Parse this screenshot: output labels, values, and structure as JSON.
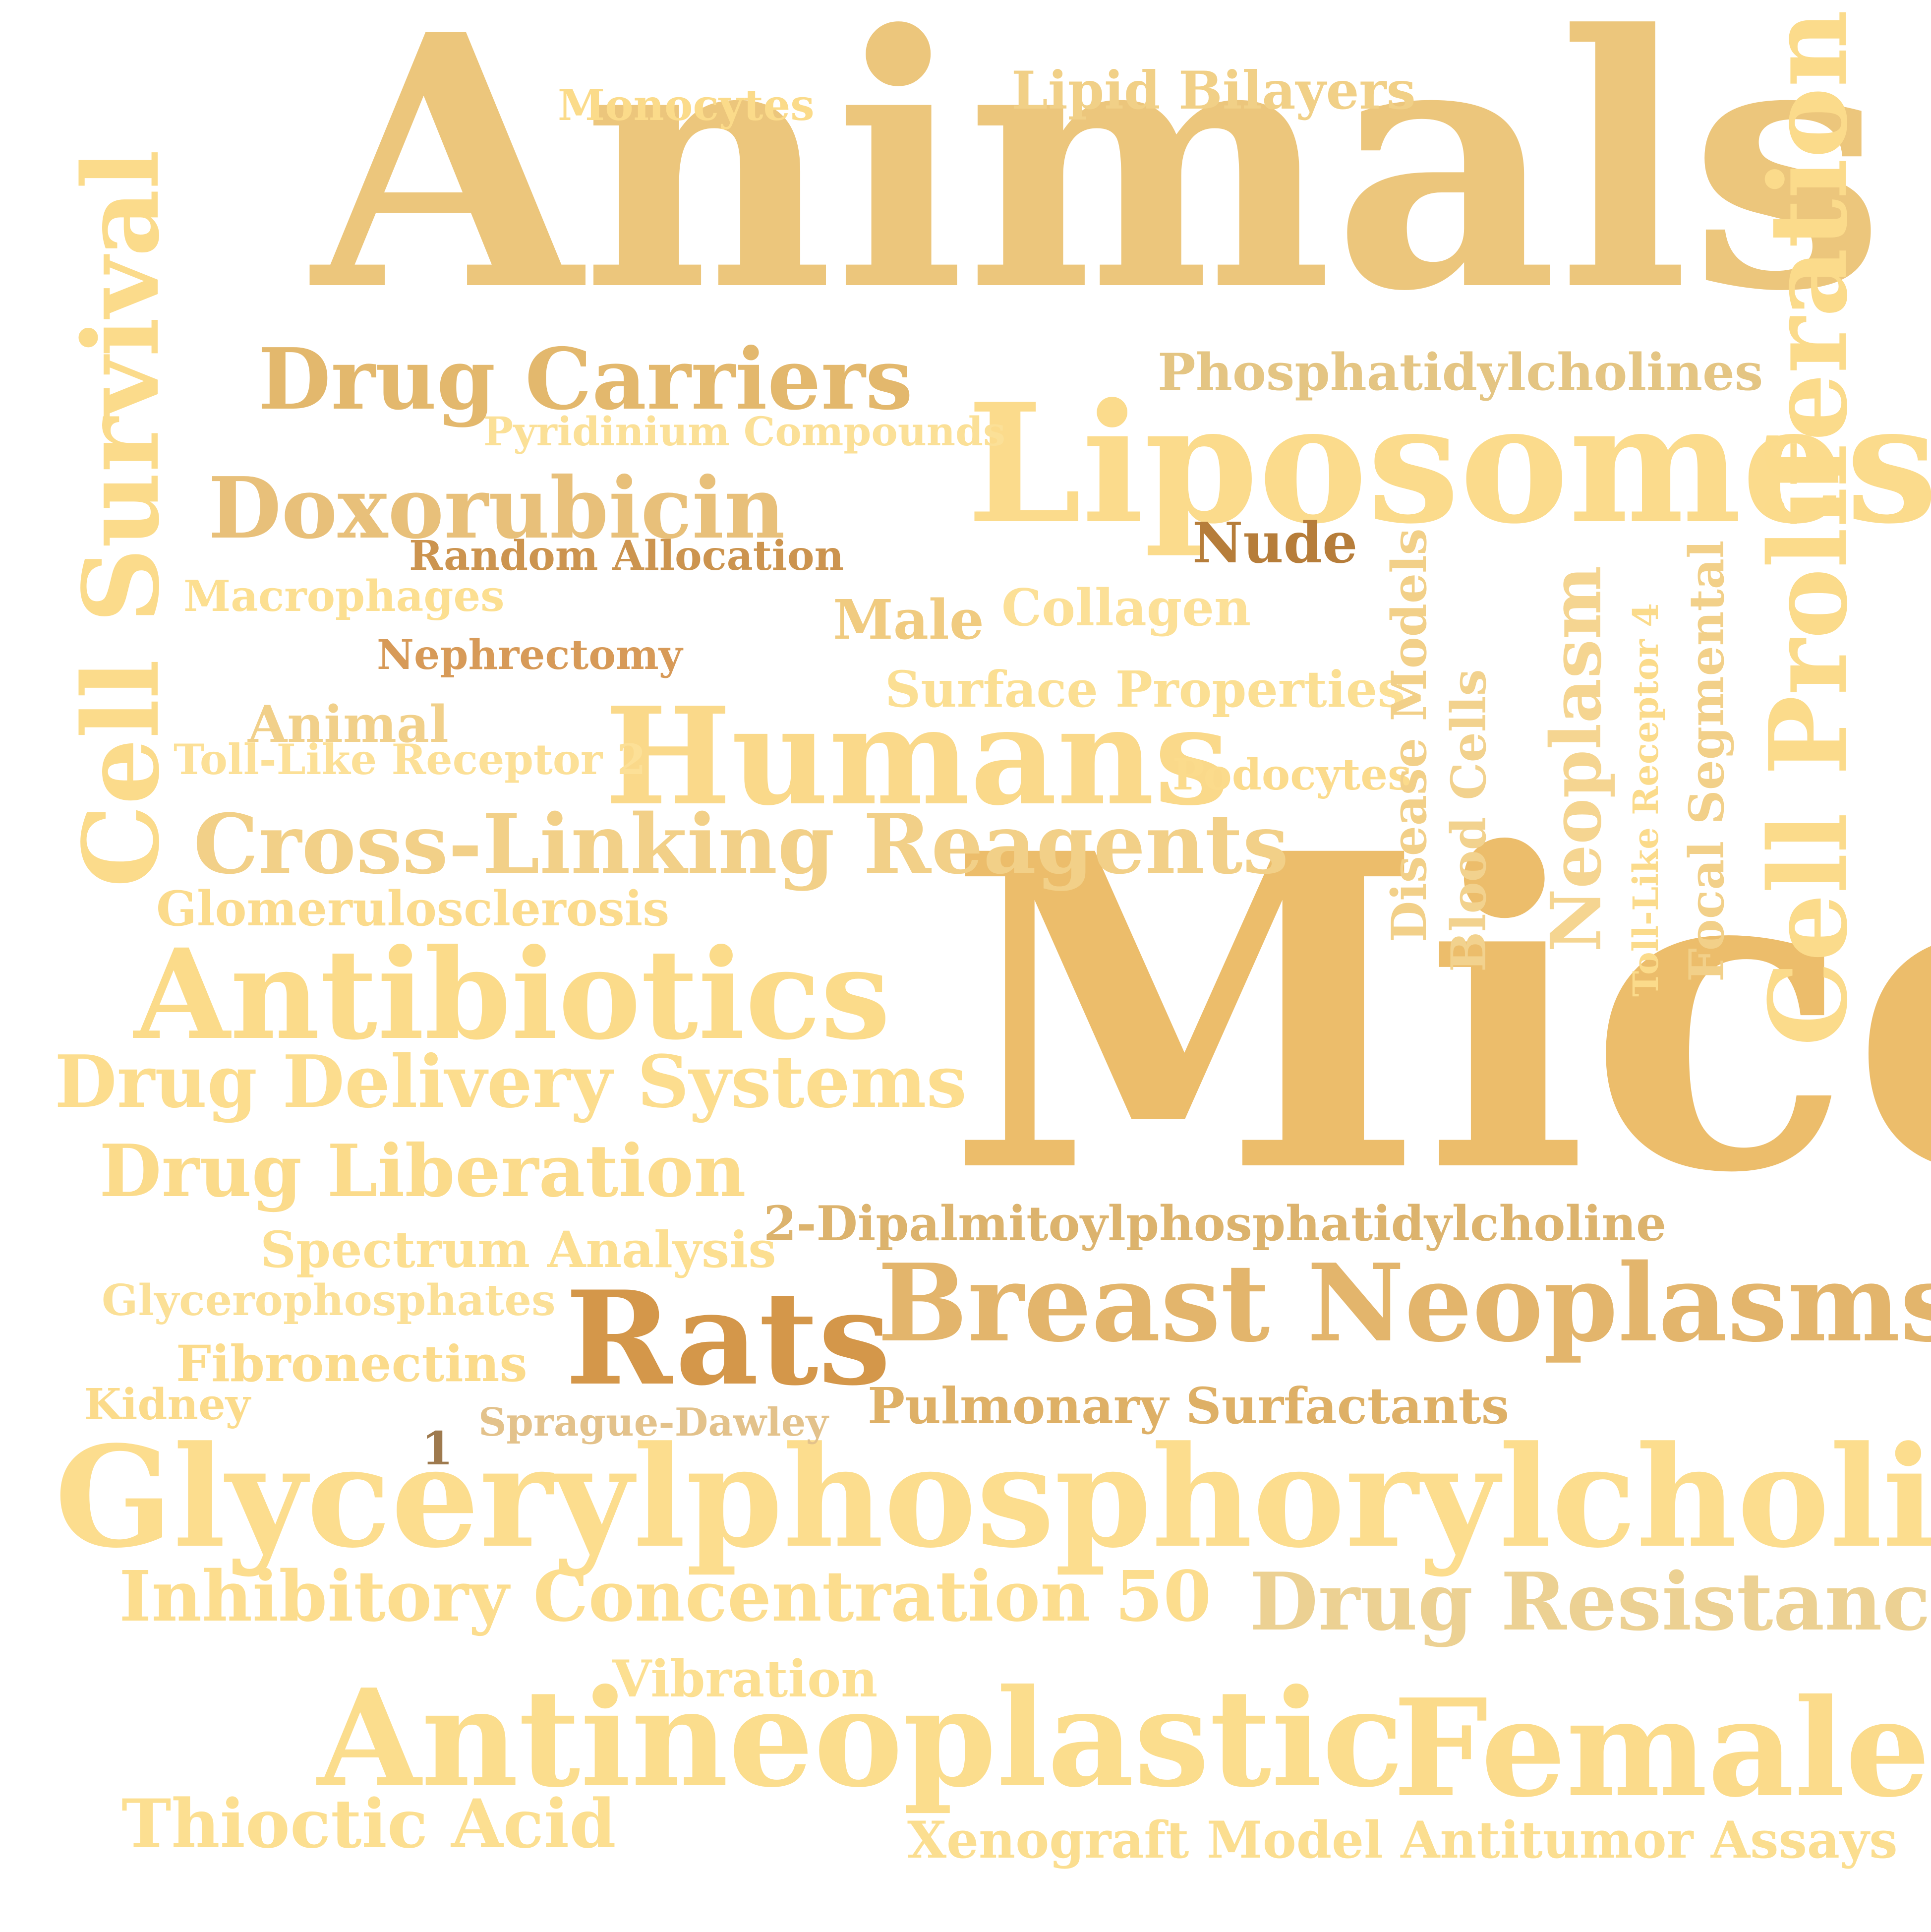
{
  "words": [
    {
      "id": "animals",
      "text": "Animals",
      "color": "#ecc67c"
    },
    {
      "id": "mice",
      "text": "Mice",
      "color": "#ecbd6b"
    },
    {
      "id": "liposomes",
      "text": "Liposomes",
      "color": "#fbdb8c"
    },
    {
      "id": "humans",
      "text": "Humans",
      "color": "#fad98a"
    },
    {
      "id": "glycerylphosphorylcholine",
      "text": "Glycerylphosphorylcholine",
      "color": "#fcdd8e"
    },
    {
      "id": "antineoplastic",
      "text": "Antineoplastic",
      "color": "#fbdd8d"
    },
    {
      "id": "female",
      "text": "Female",
      "color": "#fbdb8b"
    },
    {
      "id": "breast-neoplasms",
      "text": "Breast Neoplasms",
      "color": "#e3b56c"
    },
    {
      "id": "rats",
      "text": "Rats",
      "color": "#d4974a"
    },
    {
      "id": "antibiotics",
      "text": "Antibiotics",
      "color": "#fbdb8a"
    },
    {
      "id": "drug-carriers",
      "text": "Drug Carriers",
      "color": "#e3b86d"
    },
    {
      "id": "doxorubicin",
      "text": "Doxorubicin",
      "color": "#e8c07a"
    },
    {
      "id": "cross-linking-reagents",
      "text": "Cross-Linking Reagents",
      "color": "#f2d088"
    },
    {
      "id": "drug-delivery-systems",
      "text": "Drug Delivery Systems",
      "color": "#fcdd8e"
    },
    {
      "id": "drug-liberation",
      "text": "Drug Liberation",
      "color": "#fbdb8b"
    },
    {
      "id": "drug-resistance",
      "text": "Drug Resistance",
      "color": "#ecd193"
    },
    {
      "id": "inhibitory-concentration-50",
      "text": "Inhibitory Concentration 50",
      "color": "#fcdd8e"
    },
    {
      "id": "thioctic-acid",
      "text": "Thioctic Acid",
      "color": "#fcdf91"
    },
    {
      "id": "xenograft-model",
      "text": "Xenograft Model Antitumor Assays",
      "color": "#fbde90"
    },
    {
      "id": "vibration",
      "text": "Vibration",
      "color": "#fcdf91"
    },
    {
      "id": "phosphatidylcholines",
      "text": "Phosphatidylcholines",
      "color": "#e4c583"
    },
    {
      "id": "lipid-bilayers",
      "text": "Lipid Bilayers",
      "color": "#f1d087"
    },
    {
      "id": "monocytes",
      "text": "Monocytes",
      "color": "#fbdb8a"
    },
    {
      "id": "pyridinium-compounds",
      "text": "Pyridinium Compounds",
      "color": "#fbe097"
    },
    {
      "id": "random-allocation",
      "text": "Random Allocation",
      "color": "#cc944f"
    },
    {
      "id": "macrophages",
      "text": "Macrophages",
      "color": "#fcdf91"
    },
    {
      "id": "nephrectomy",
      "text": "Nephrectomy",
      "color": "#d79a58"
    },
    {
      "id": "animal",
      "text": "Animal",
      "color": "#f1d08a"
    },
    {
      "id": "toll-like-receptor-2",
      "text": "Toll-Like Receptor 2",
      "color": "#fce097"
    },
    {
      "id": "glomerulosclerosis",
      "text": "Glomerulosclerosis",
      "color": "#fbdb8c"
    },
    {
      "id": "male",
      "text": "Male",
      "color": "#f0cb80"
    },
    {
      "id": "collagen",
      "text": "Collagen",
      "color": "#fce097"
    },
    {
      "id": "nude",
      "text": "Nude",
      "color": "#b67d3a"
    },
    {
      "id": "surface-properties",
      "text": "Surface Properties",
      "color": "#fbdf93"
    },
    {
      "id": "podocytes",
      "text": "Podocytes",
      "color": "#fbdb8c"
    },
    {
      "id": "2-dipalmitoyl",
      "text": "2-Dipalmitoylphosphatidylcholine",
      "color": "#dcb36d"
    },
    {
      "id": "spectrum-analysis",
      "text": "Spectrum Analysis",
      "color": "#fcdf91"
    },
    {
      "id": "glycerophosphates",
      "text": "Glycerophosphates",
      "color": "#fbe097"
    },
    {
      "id": "fibronectins",
      "text": "Fibronectins",
      "color": "#fbdb8b"
    },
    {
      "id": "kidney",
      "text": "Kidney",
      "color": "#fbdb8b"
    },
    {
      "id": "one",
      "text": "1",
      "color": "#9e7a4e"
    },
    {
      "id": "sprague-dawley",
      "text": "Sprague-Dawley",
      "color": "#e3c28b"
    },
    {
      "id": "pulmonary-surfactants",
      "text": "Pulmonary Surfactants",
      "color": "#deb066"
    },
    {
      "id": "cell-survival",
      "text": "Cell Survival",
      "color": "#fbdb8b"
    },
    {
      "id": "cell-proliferation",
      "text": "Cell Proliferation",
      "color": "#fbdb8b"
    },
    {
      "id": "disease-models",
      "text": "Disease Models",
      "color": "#f2d089"
    },
    {
      "id": "blood-cells",
      "text": "Blood Cells",
      "color": "#f2d28e"
    },
    {
      "id": "neoplasm",
      "text": "Neoplasm",
      "color": "#f5d591"
    },
    {
      "id": "toll-like-receptor-4",
      "text": "Toll-Like Receptor 4",
      "color": "#fbdb8b"
    },
    {
      "id": "focal-segmental",
      "text": "Focal Segmental",
      "color": "#f2d089"
    }
  ]
}
